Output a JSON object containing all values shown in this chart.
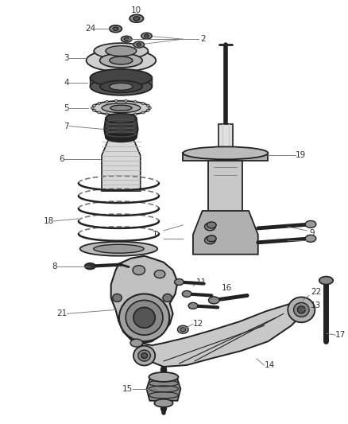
{
  "bg_color": "#ffffff",
  "line_color": "#555555",
  "label_color": "#333333",
  "dark": "#222222",
  "mid": "#777777",
  "light": "#bbbbbb",
  "figsize": [
    4.38,
    5.33
  ],
  "dpi": 100,
  "img_extent": [
    0,
    438,
    0,
    533
  ]
}
